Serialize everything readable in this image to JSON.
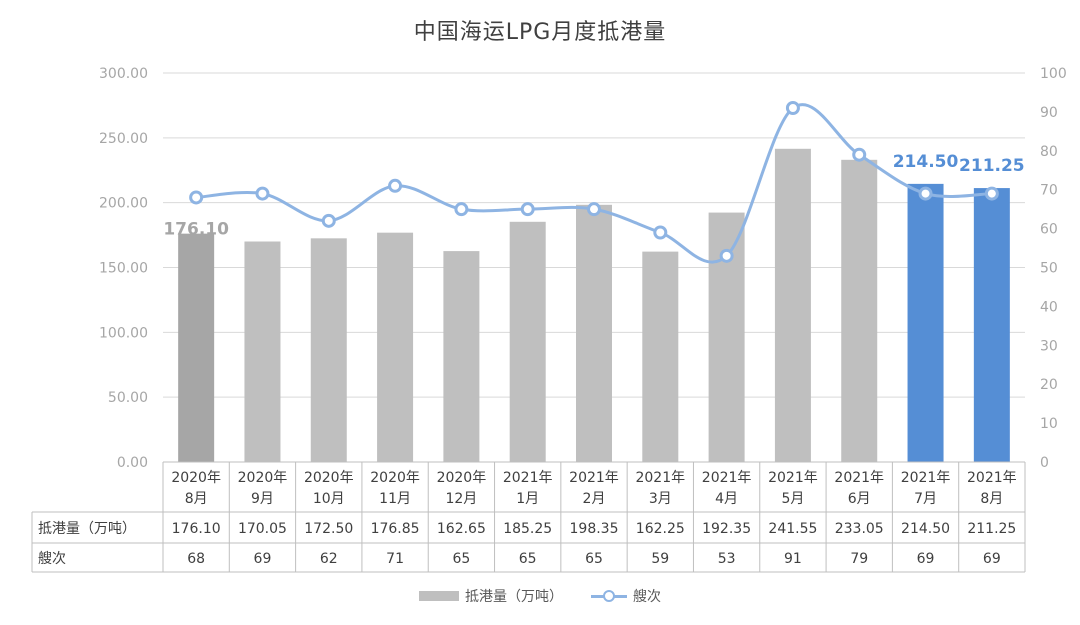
{
  "chart_data": {
    "type": "bar",
    "title": "中国海运LPG月度抵港量",
    "categories": [
      [
        "2020年",
        "8月"
      ],
      [
        "2020年",
        "9月"
      ],
      [
        "2020年",
        "10月"
      ],
      [
        "2020年",
        "11月"
      ],
      [
        "2020年",
        "12月"
      ],
      [
        "2021年",
        "1月"
      ],
      [
        "2021年",
        "2月"
      ],
      [
        "2021年",
        "3月"
      ],
      [
        "2021年",
        "4月"
      ],
      [
        "2021年",
        "5月"
      ],
      [
        "2021年",
        "6月"
      ],
      [
        "2021年",
        "7月"
      ],
      [
        "2021年",
        "8月"
      ]
    ],
    "series": [
      {
        "name": "抵港量（万吨）",
        "type": "bar",
        "axis": "left",
        "values": [
          176.1,
          170.05,
          172.5,
          176.85,
          162.65,
          185.25,
          198.35,
          162.25,
          192.35,
          241.55,
          233.05,
          214.5,
          211.25
        ],
        "table_values": [
          "176.10",
          "170.05",
          "172.50",
          "176.85",
          "162.65",
          "185.25",
          "198.35",
          "162.25",
          "192.35",
          "241.55",
          "233.05",
          "214.50",
          "211.25"
        ]
      },
      {
        "name": "艘次",
        "type": "line",
        "axis": "right",
        "values": [
          68,
          69,
          62,
          71,
          65,
          65,
          65,
          59,
          53,
          91,
          79,
          69,
          69
        ],
        "table_values": [
          "68",
          "69",
          "62",
          "71",
          "65",
          "65",
          "65",
          "59",
          "53",
          "91",
          "79",
          "69",
          "69"
        ]
      }
    ],
    "y_left": {
      "range": [
        0,
        300
      ],
      "ticks": [
        "0.00",
        "50.00",
        "100.00",
        "150.00",
        "200.00",
        "250.00",
        "300.00"
      ]
    },
    "y_right": {
      "range": [
        0,
        100
      ],
      "ticks": [
        "0",
        "10",
        "20",
        "30",
        "40",
        "50",
        "60",
        "70",
        "80",
        "90",
        "100"
      ]
    },
    "data_labels": [
      {
        "index": 0,
        "text": "176.10"
      },
      {
        "index": 11,
        "text": "214.50"
      },
      {
        "index": 12,
        "text": "211.25"
      }
    ],
    "grid": true,
    "legend_position": "bottom",
    "data_table": true
  },
  "colors": {
    "bar_default": "#bfbfbf",
    "bar_first": "#a6a6a6",
    "bar_highlight": "#558ed5",
    "line": "#8eb4e3",
    "label_first": "#a6a6a6",
    "label_highlight": "#558ed5"
  }
}
